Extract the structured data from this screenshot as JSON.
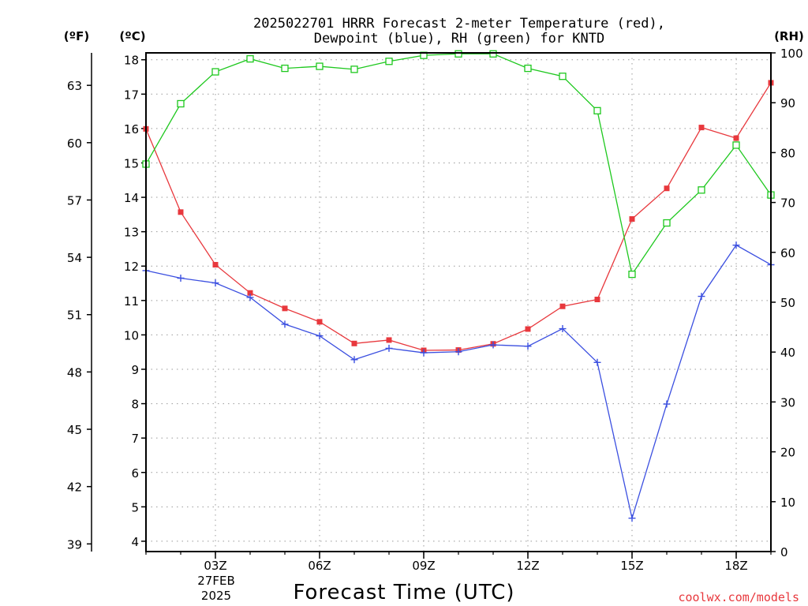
{
  "chart_data": {
    "type": "line",
    "title": "2025022701 HRRR Forecast 2-meter Temperature (red),",
    "subtitle": "Dewpoint (blue), RH (green) for KNTD",
    "xlabel": "Forecast Time (UTC)",
    "unit_left_f": "(ºF)",
    "unit_left_c": "(ºC)",
    "unit_right": "(RH)",
    "credit": "coolwx.com/models",
    "colors": {
      "temperature": "#e8383d",
      "dewpoint": "#3b4fe0",
      "rh": "#1ec81e",
      "grid": "#999999"
    },
    "grid": true,
    "x_hours": [
      1,
      2,
      3,
      4,
      5,
      6,
      7,
      8,
      9,
      10,
      11,
      12,
      13,
      14,
      15,
      16,
      17,
      18,
      19
    ],
    "x_ticks": [
      {
        "hour": 3,
        "label": "03Z"
      },
      {
        "hour": 6,
        "label": "06Z"
      },
      {
        "hour": 9,
        "label": "09Z"
      },
      {
        "hour": 12,
        "label": "12Z"
      },
      {
        "hour": 15,
        "label": "15Z"
      },
      {
        "hour": 18,
        "label": "18Z"
      }
    ],
    "x_date_lines": [
      "27FEB",
      "2025"
    ],
    "xlim": [
      1,
      19
    ],
    "ylim_c": [
      3.7,
      18.2
    ],
    "ylim_f": [
      38.6,
      64.7
    ],
    "ylim_rh": [
      0,
      100
    ],
    "yticks_c": [
      4,
      5,
      6,
      7,
      8,
      9,
      10,
      11,
      12,
      13,
      14,
      15,
      16,
      17,
      18
    ],
    "yticks_f": [
      39,
      42,
      45,
      48,
      51,
      54,
      57,
      60,
      63
    ],
    "yticks_rh": [
      0,
      10,
      20,
      30,
      40,
      50,
      60,
      70,
      80,
      90,
      100
    ],
    "series": [
      {
        "name": "Temperature",
        "axis": "c",
        "marker": "square",
        "values": [
          15.99,
          13.57,
          12.04,
          11.22,
          10.77,
          10.38,
          9.75,
          9.85,
          9.55,
          9.56,
          9.74,
          10.17,
          10.83,
          11.03,
          13.37,
          14.26,
          16.03,
          15.72,
          17.33
        ]
      },
      {
        "name": "Dewpoint",
        "axis": "c",
        "marker": "plus",
        "values": [
          11.87,
          11.65,
          11.51,
          11.09,
          10.31,
          9.97,
          9.28,
          9.61,
          9.48,
          9.51,
          9.71,
          9.67,
          10.18,
          9.2,
          4.67,
          7.99,
          11.12,
          12.61,
          12.04
        ]
      },
      {
        "name": "RH",
        "axis": "rh",
        "marker": "hollow-square",
        "values": [
          77.7,
          89.8,
          96.2,
          98.8,
          96.9,
          97.3,
          96.7,
          98.3,
          99.5,
          99.8,
          99.8,
          96.9,
          95.3,
          88.4,
          55.6,
          65.9,
          72.5,
          81.5,
          71.5
        ]
      }
    ]
  }
}
